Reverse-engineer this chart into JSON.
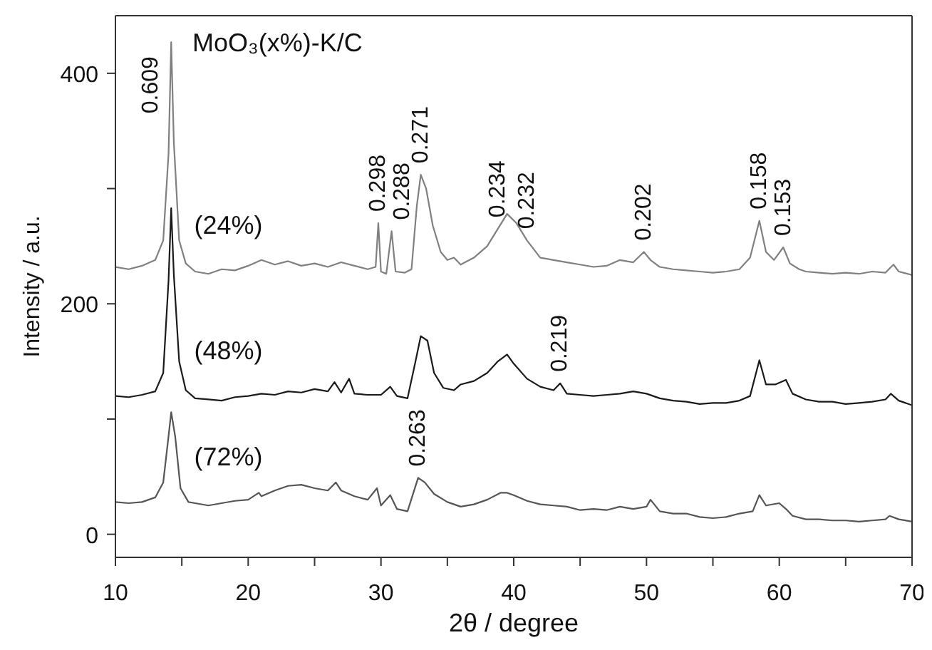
{
  "chart_data": {
    "type": "line",
    "title": "MoO₃(x%)-K/C",
    "xlabel": "2θ /  degree",
    "ylabel": "Intensity / a.u.",
    "xlim": [
      10,
      70
    ],
    "xticks": [
      10,
      {
        "value": 15,
        "label": null
      },
      20,
      {
        "value": 25,
        "label": null
      },
      30,
      {
        "value": 35,
        "label": null
      },
      40,
      {
        "value": 45,
        "label": null
      },
      50,
      {
        "value": 55,
        "label": null
      },
      60,
      {
        "value": 65,
        "label": null
      },
      70
    ],
    "ylim": [
      -20,
      450
    ],
    "yticks": [
      0,
      {
        "value": 100,
        "label": null
      },
      200,
      {
        "value": 300,
        "label": null
      },
      400
    ],
    "grid": false,
    "legend": false,
    "marker": "none",
    "line_style": "solid",
    "series": [
      {
        "name": "(24%)",
        "color": "#808080",
        "x": [
          10,
          11,
          12,
          13,
          13.6,
          14,
          14.2,
          14.4,
          14.8,
          15.3,
          16,
          17,
          18,
          19,
          20,
          21,
          22,
          23,
          24,
          25,
          26,
          27,
          28,
          29,
          29.6,
          29.8,
          30,
          30.4,
          30.8,
          31.1,
          31.8,
          32.3,
          32.7,
          33,
          33.4,
          33.9,
          34.5,
          35,
          35.5,
          36,
          37,
          38,
          38.8,
          39.5,
          40.2,
          41,
          42,
          43,
          44,
          45,
          46,
          47,
          48,
          49,
          49.8,
          50.3,
          51,
          52,
          53,
          54,
          55,
          56,
          57,
          57.8,
          58.5,
          59,
          59.6,
          60.3,
          60.8,
          61.5,
          62,
          63,
          64,
          65,
          66,
          67,
          68,
          68.6,
          69,
          70
        ],
        "values": [
          232,
          230,
          233,
          238,
          255,
          330,
          427,
          340,
          255,
          235,
          228,
          226,
          230,
          229,
          233,
          238,
          234,
          237,
          233,
          235,
          232,
          236,
          233,
          230,
          232,
          270,
          228,
          226,
          263,
          228,
          227,
          230,
          285,
          312,
          300,
          268,
          245,
          238,
          240,
          234,
          240,
          250,
          265,
          278,
          270,
          255,
          240,
          238,
          236,
          234,
          232,
          233,
          238,
          236,
          245,
          238,
          232,
          230,
          229,
          228,
          227,
          228,
          230,
          240,
          272,
          245,
          238,
          249,
          235,
          230,
          228,
          227,
          226,
          227,
          226,
          228,
          227,
          234,
          228,
          225
        ]
      },
      {
        "name": "(48%)",
        "color": "#1a1a1a",
        "x": [
          10,
          11,
          12,
          13,
          13.6,
          14,
          14.2,
          14.4,
          14.8,
          15.3,
          16,
          17,
          18,
          19,
          20,
          21,
          22,
          23,
          24,
          25,
          26,
          26.5,
          27,
          27.6,
          28,
          29,
          30,
          30.7,
          31.2,
          32,
          32.6,
          33,
          33.5,
          34,
          34.7,
          35.5,
          36,
          37,
          38,
          38.8,
          39.5,
          40,
          41,
          42,
          43,
          43.5,
          44,
          45,
          46,
          47,
          48,
          49,
          50,
          51,
          52,
          53,
          54,
          55,
          56,
          57,
          57.8,
          58.5,
          59,
          59.7,
          60.5,
          61,
          62,
          63,
          64,
          65,
          66,
          67,
          68,
          68.4,
          69,
          70
        ],
        "values": [
          120,
          119,
          121,
          124,
          140,
          220,
          283,
          225,
          150,
          125,
          118,
          117,
          116,
          119,
          120,
          122,
          121,
          124,
          123,
          126,
          124,
          132,
          123,
          135,
          122,
          121,
          121,
          128,
          120,
          118,
          150,
          172,
          168,
          140,
          127,
          125,
          130,
          133,
          140,
          150,
          156,
          148,
          135,
          128,
          125,
          131,
          122,
          121,
          120,
          121,
          122,
          124,
          122,
          118,
          116,
          115,
          113,
          114,
          114,
          116,
          120,
          151,
          130,
          130,
          134,
          122,
          117,
          115,
          115,
          113,
          114,
          115,
          117,
          122,
          116,
          112
        ]
      },
      {
        "name": "(72%)",
        "color": "#555555",
        "x": [
          10,
          11,
          12,
          13,
          13.6,
          14,
          14.2,
          14.5,
          14.9,
          15.5,
          16,
          17,
          18,
          19,
          20,
          20.8,
          21,
          22,
          23,
          24,
          25,
          26,
          26.6,
          27,
          28,
          29,
          29.7,
          30,
          30.7,
          31.2,
          32,
          32.8,
          33.3,
          34,
          35,
          36,
          37,
          38,
          39,
          39.5,
          40,
          41,
          42,
          43,
          44,
          45,
          46,
          47,
          48,
          49,
          50,
          50.3,
          51,
          52,
          53,
          54,
          55,
          56,
          57,
          58,
          58.5,
          59,
          60,
          60.5,
          61,
          62,
          63,
          64,
          65,
          66,
          67,
          68,
          68.3,
          69,
          70
        ],
        "values": [
          28,
          27,
          28,
          32,
          45,
          85,
          106,
          85,
          40,
          28,
          27,
          25,
          27,
          29,
          30,
          36,
          33,
          38,
          42,
          43,
          40,
          38,
          45,
          38,
          33,
          30,
          40,
          25,
          34,
          22,
          20,
          49,
          45,
          35,
          28,
          24,
          26,
          30,
          36,
          36,
          34,
          29,
          26,
          25,
          24,
          21,
          22,
          21,
          24,
          22,
          24,
          30,
          20,
          18,
          18,
          15,
          14,
          15,
          18,
          20,
          34,
          25,
          27,
          22,
          16,
          13,
          13,
          12,
          12,
          11,
          12,
          13,
          16,
          13,
          11
        ]
      }
    ],
    "annotations": [
      {
        "text": "0.609",
        "x": 14.2,
        "y": 427
      },
      {
        "text": "0.298",
        "x": 29.8,
        "y": 270
      },
      {
        "text": "0.288",
        "x": 30.8,
        "y": 263
      },
      {
        "text": "0.271",
        "x": 33,
        "y": 312
      },
      {
        "text": "0.234",
        "x": 38.8,
        "y": 265
      },
      {
        "text": "0.232",
        "x": 41,
        "y": 255
      },
      {
        "text": "0.202",
        "x": 49.8,
        "y": 245
      },
      {
        "text": "0.158",
        "x": 58.5,
        "y": 272
      },
      {
        "text": "0.153",
        "x": 60.3,
        "y": 249
      },
      {
        "text": "0.219",
        "x": 43.5,
        "y": 131
      },
      {
        "text": "0.263",
        "x": 32.8,
        "y": 49
      }
    ]
  }
}
